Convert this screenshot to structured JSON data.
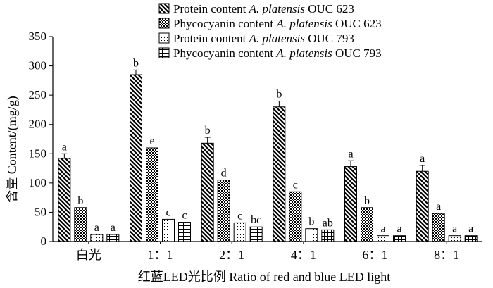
{
  "chart_data": {
    "type": "bar",
    "title": "",
    "xlabel": "红蓝LED光比例 Ratio of  red and blue LED light",
    "ylabel": "含量 Content/(mg/g)",
    "ylim": [
      0,
      350
    ],
    "yticks": [
      0,
      50,
      100,
      150,
      200,
      250,
      300,
      350
    ],
    "ytick_labels": [
      "0",
      "50",
      "100",
      "150",
      "200",
      "250",
      "300",
      "350"
    ],
    "categories": [
      "白光",
      "1：1",
      "2：1",
      "4：1",
      "6：1",
      "8：1"
    ],
    "legend_position": "top-right",
    "series": [
      {
        "name_prefix": "Protein content ",
        "name_species": "A. platensis",
        "name_suffix": " OUC 623",
        "pattern": "diag",
        "values": [
          142,
          285,
          168,
          230,
          128,
          120
        ],
        "errors": [
          8,
          8,
          10,
          10,
          10,
          10
        ],
        "letters": [
          "a",
          "b",
          "b",
          "b",
          "a",
          "a"
        ]
      },
      {
        "name_prefix": "Phycocyanin content ",
        "name_species": "A. platensis",
        "name_suffix": " OUC 623",
        "pattern": "check",
        "values": [
          58,
          160,
          105,
          85,
          58,
          48
        ],
        "errors": [
          0,
          0,
          0,
          0,
          0,
          0
        ],
        "letters": [
          "b",
          "e",
          "d",
          "c",
          "b",
          "a"
        ]
      },
      {
        "name_prefix": "Protein content ",
        "name_species": "A. platensis",
        "name_suffix": " OUC 793",
        "pattern": "dots",
        "values": [
          12,
          38,
          32,
          22,
          10,
          10
        ],
        "errors": [
          0,
          0,
          0,
          0,
          0,
          0
        ],
        "letters": [
          "a",
          "c",
          "c",
          "b",
          "a",
          "a"
        ]
      },
      {
        "name_prefix": "Phycocyanin content ",
        "name_species": "A. platensis",
        "name_suffix": " OUC 793",
        "pattern": "grid",
        "values": [
          12,
          33,
          25,
          20,
          10,
          10
        ],
        "errors": [
          0,
          0,
          0,
          0,
          0,
          0
        ],
        "letters": [
          "a",
          "c",
          "bc",
          "ab",
          "a",
          "a"
        ]
      }
    ]
  }
}
